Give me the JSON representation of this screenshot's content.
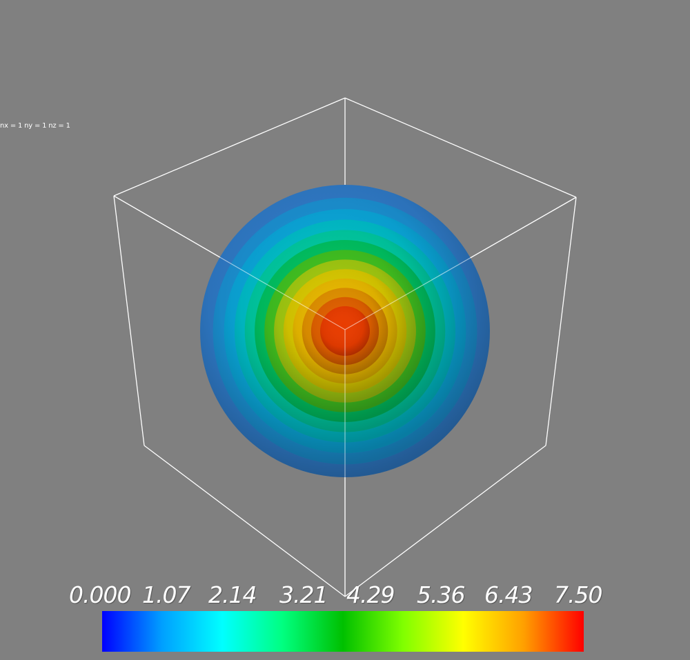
{
  "info_text": "nx = 1 ny = 1 nz = 1",
  "colormap": {
    "labels": [
      "0.000",
      "1.07",
      "2.14",
      "3.21",
      "4.29",
      "5.36",
      "6.43",
      "7.50"
    ],
    "min": 0.0,
    "max": 7.5,
    "stops": [
      "#0000ff",
      "#00a0ff",
      "#00ffff",
      "#00ff80",
      "#00c000",
      "#80ff00",
      "#ffff00",
      "#ffa000",
      "#ff0000"
    ]
  },
  "scene": {
    "background_color": "#808080",
    "outline_color": "#ffffff",
    "isosurface_colors": [
      "#2e78c4",
      "#1a8fd0",
      "#0aa5d8",
      "#00bcc8",
      "#00c8a0",
      "#00c060",
      "#40c020",
      "#a0c810",
      "#d8c800",
      "#e8b800",
      "#e09000",
      "#e06000",
      "#e83c00"
    ]
  }
}
